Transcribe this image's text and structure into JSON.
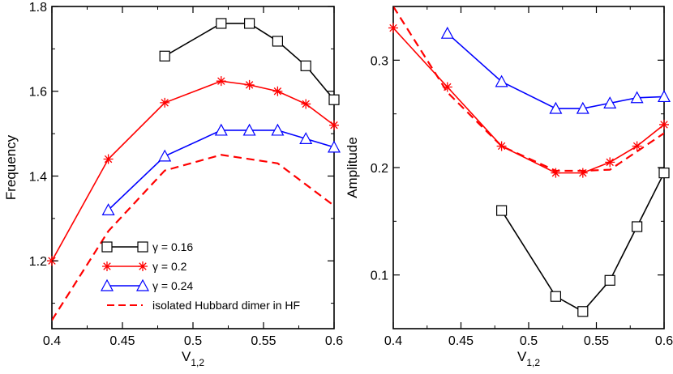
{
  "chart_data": [
    {
      "type": "line",
      "ylabel": "Frequency",
      "xlabel_main": "V",
      "xlabel_sub": "1,2",
      "xlim": [
        0.4,
        0.6
      ],
      "ylim": [
        1.04,
        1.8
      ],
      "xticks": [
        0.4,
        0.45,
        0.5,
        0.55,
        0.6
      ],
      "xtick_labels": [
        "0.4",
        "0.45",
        "0.5",
        "0.55",
        "0.6"
      ],
      "yticks": [
        1.2,
        1.4,
        1.6,
        1.8
      ],
      "ytick_labels": [
        "1.2",
        "1.4",
        "1.6",
        "1.8"
      ],
      "series": [
        {
          "name": "γ = 0.16",
          "color": "#000000",
          "marker": "square",
          "dash": false,
          "x": [
            0.48,
            0.52,
            0.54,
            0.56,
            0.58,
            0.6
          ],
          "y": [
            1.683,
            1.76,
            1.76,
            1.718,
            1.66,
            1.58
          ]
        },
        {
          "name": "γ = 0.2",
          "color": "#ff0000",
          "marker": "star",
          "dash": false,
          "x": [
            0.4,
            0.44,
            0.48,
            0.52,
            0.54,
            0.56,
            0.58,
            0.6
          ],
          "y": [
            1.2,
            1.44,
            1.573,
            1.624,
            1.615,
            1.6,
            1.57,
            1.52
          ]
        },
        {
          "name": "γ = 0.24",
          "color": "#0000ff",
          "marker": "triangle",
          "dash": false,
          "x": [
            0.44,
            0.48,
            0.52,
            0.54,
            0.56,
            0.58,
            0.6
          ],
          "y": [
            1.32,
            1.447,
            1.508,
            1.508,
            1.508,
            1.488,
            1.468
          ]
        },
        {
          "name": "isolated Hubbard dimer in HF",
          "color": "#ff0000",
          "marker": "none",
          "dash": true,
          "x": [
            0.4,
            0.44,
            0.48,
            0.52,
            0.56,
            0.6
          ],
          "y": [
            1.06,
            1.27,
            1.413,
            1.45,
            1.43,
            1.33
          ]
        }
      ],
      "legend": {
        "position": "bottom-left",
        "entries": [
          "γ = 0.16",
          "γ = 0.2",
          "γ = 0.24",
          "isolated Hubbard dimer in HF"
        ]
      }
    },
    {
      "type": "line",
      "ylabel": "Amplitude",
      "xlabel_main": "V",
      "xlabel_sub": "1,2",
      "xlim": [
        0.4,
        0.6
      ],
      "ylim": [
        0.05,
        0.35
      ],
      "xticks": [
        0.4,
        0.45,
        0.5,
        0.55,
        0.6
      ],
      "xtick_labels": [
        "0.4",
        "0.45",
        "0.5",
        "0.55",
        "0.6"
      ],
      "yticks": [
        0.1,
        0.2,
        0.3
      ],
      "ytick_labels": [
        "0.1",
        "0.2",
        "0.3"
      ],
      "series": [
        {
          "name": "γ = 0.16",
          "color": "#000000",
          "marker": "square",
          "dash": false,
          "x": [
            0.48,
            0.52,
            0.54,
            0.56,
            0.58,
            0.6
          ],
          "y": [
            0.16,
            0.08,
            0.066,
            0.095,
            0.145,
            0.195
          ]
        },
        {
          "name": "γ = 0.2",
          "color": "#ff0000",
          "marker": "star",
          "dash": false,
          "x": [
            0.4,
            0.44,
            0.48,
            0.52,
            0.54,
            0.56,
            0.58,
            0.6
          ],
          "y": [
            0.33,
            0.275,
            0.22,
            0.195,
            0.195,
            0.205,
            0.22,
            0.24
          ]
        },
        {
          "name": "γ = 0.24",
          "color": "#0000ff",
          "marker": "triangle",
          "dash": false,
          "x": [
            0.44,
            0.48,
            0.52,
            0.54,
            0.56,
            0.58,
            0.6
          ],
          "y": [
            0.325,
            0.28,
            0.255,
            0.255,
            0.26,
            0.265,
            0.266
          ]
        },
        {
          "name": "isolated Hubbard dimer in HF",
          "color": "#ff0000",
          "marker": "none",
          "dash": true,
          "x": [
            0.4,
            0.44,
            0.48,
            0.52,
            0.54,
            0.56,
            0.58,
            0.6
          ],
          "y": [
            0.35,
            0.27,
            0.22,
            0.197,
            0.197,
            0.198,
            0.215,
            0.232
          ]
        }
      ]
    }
  ]
}
